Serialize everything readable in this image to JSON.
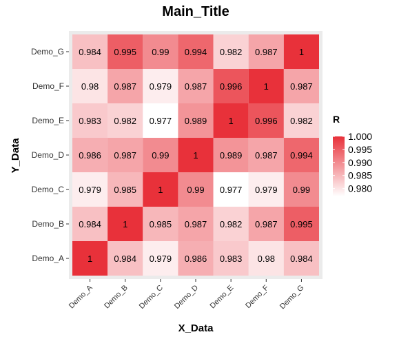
{
  "chart_data": {
    "type": "heatmap",
    "title": "Main_Title",
    "xlabel": "X_Data",
    "ylabel": "Y_Data",
    "x_categories": [
      "Demo_A",
      "Demo_B",
      "Demo_C",
      "Demo_D",
      "Demo_E",
      "Demo_F",
      "Demo_G"
    ],
    "y_categories": [
      "Demo_A",
      "Demo_B",
      "Demo_C",
      "Demo_D",
      "Demo_E",
      "Demo_F",
      "Demo_G"
    ],
    "values": [
      [
        1,
        0.984,
        0.979,
        0.986,
        0.983,
        0.98,
        0.984
      ],
      [
        0.984,
        1,
        0.985,
        0.987,
        0.982,
        0.987,
        0.995
      ],
      [
        0.979,
        0.985,
        1,
        0.99,
        0.977,
        0.979,
        0.99
      ],
      [
        0.986,
        0.987,
        0.99,
        1,
        0.989,
        0.987,
        0.994
      ],
      [
        0.983,
        0.982,
        0.977,
        0.989,
        1,
        0.996,
        0.982
      ],
      [
        0.98,
        0.987,
        0.979,
        0.987,
        0.996,
        1,
        0.987
      ],
      [
        0.984,
        0.995,
        0.99,
        0.994,
        0.982,
        0.987,
        1
      ]
    ],
    "legend": {
      "title": "R",
      "ticks": [
        1.0,
        0.995,
        0.99,
        0.985,
        0.98
      ],
      "tick_labels": [
        "1.000",
        "0.995",
        "0.990",
        "0.985",
        "0.980"
      ],
      "range": [
        0.977,
        1.0
      ],
      "placement": "right"
    },
    "colors": {
      "low": "#ffffff",
      "high": "#e8313a",
      "panel_background": "#ebebeb"
    },
    "grid": true
  }
}
